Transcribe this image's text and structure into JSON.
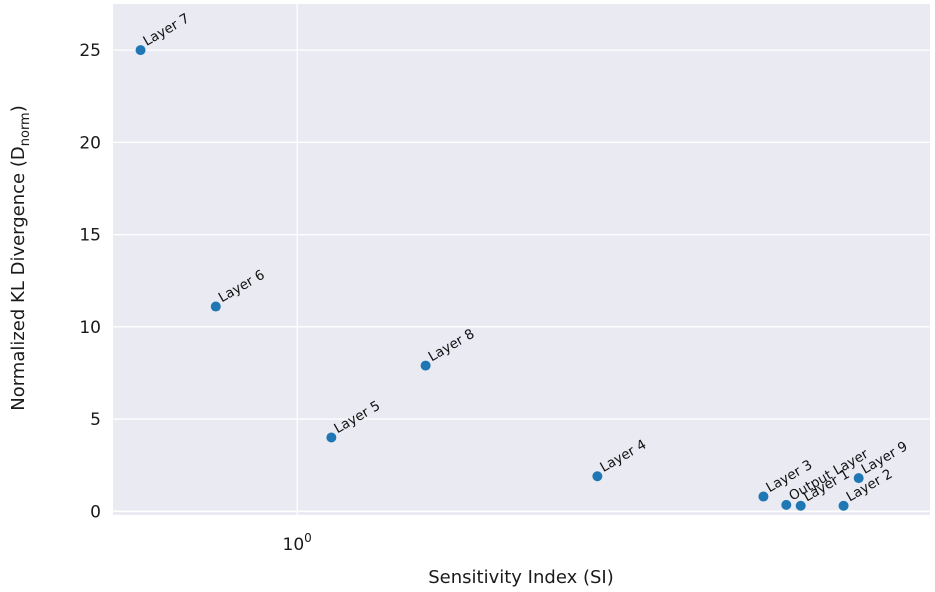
{
  "chart_data": {
    "type": "scatter",
    "title": "",
    "xlabel": "Sensitivity Index (SI)",
    "ylabel": "Normalized KL Divergence (D",
    "ylabel_subscript": "norm",
    "ylabel_close": ")",
    "x_scale": "log",
    "xlim": [
      0.57,
      6.9
    ],
    "ylim": [
      -0.2,
      27.5
    ],
    "x_ticks": [
      {
        "value": 1,
        "base": "10",
        "exp": "0"
      }
    ],
    "y_ticks": [
      0,
      5,
      10,
      15,
      20,
      25
    ],
    "grid": true,
    "legend": "none",
    "colors": {
      "background": "#eaeaf2",
      "grid": "#ffffff",
      "point": "#1f77b4"
    },
    "points": [
      {
        "label": "Layer 7",
        "x": 0.62,
        "y": 25.0
      },
      {
        "label": "Layer 6",
        "x": 0.78,
        "y": 11.1
      },
      {
        "label": "Layer 5",
        "x": 1.11,
        "y": 4.0
      },
      {
        "label": "Layer 8",
        "x": 1.48,
        "y": 7.9
      },
      {
        "label": "Layer 4",
        "x": 2.5,
        "y": 1.9
      },
      {
        "label": "Layer 3",
        "x": 4.15,
        "y": 0.8
      },
      {
        "label": "Output Layer",
        "x": 4.45,
        "y": 0.35
      },
      {
        "label": "Layer 1",
        "x": 4.65,
        "y": 0.3
      },
      {
        "label": "Layer 9",
        "x": 5.55,
        "y": 1.8
      },
      {
        "label": "Layer 2",
        "x": 5.3,
        "y": 0.3
      }
    ]
  }
}
